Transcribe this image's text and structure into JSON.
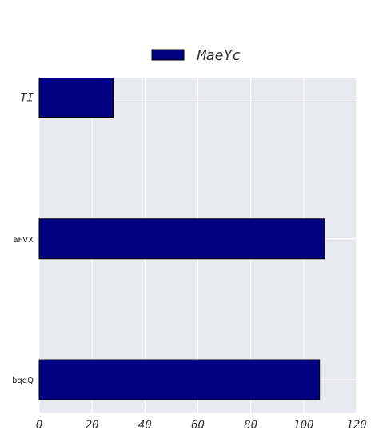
{
  "chart_data": {
    "type": "bar",
    "orientation": "horizontal",
    "categories": [
      "TI",
      "aFVX",
      "bqqQ"
    ],
    "series": [
      {
        "name": "MaeYc",
        "values": [
          28,
          108,
          106
        ]
      }
    ],
    "xlim": [
      0,
      120
    ],
    "x_ticks": [
      "0",
      "20",
      "40",
      "60",
      "80",
      "100",
      "120"
    ],
    "title": "",
    "xlabel": "",
    "ylabel": "",
    "grid": true,
    "legend_position": "top-center",
    "colors": {
      "bar": "#000080",
      "plot_background": "#e8e9f1",
      "grid": "#ffffff"
    }
  }
}
